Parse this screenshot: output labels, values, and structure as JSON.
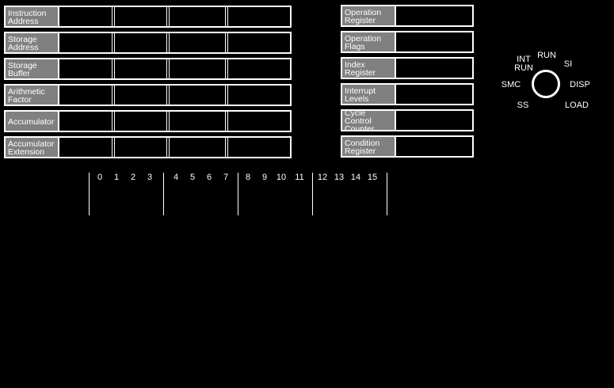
{
  "left_registers": [
    {
      "label": "Instruction\nAddress"
    },
    {
      "label": "Storage\nAddress"
    },
    {
      "label": "Storage\nBuffer"
    },
    {
      "label": "Arithmetic\nFactor"
    },
    {
      "label": "Accumulator"
    },
    {
      "label": "Accumulator\nExtension"
    }
  ],
  "right_registers": [
    {
      "label": "Operation\nRegister"
    },
    {
      "label": "Operation\nFlags"
    },
    {
      "label": "Index\nRegister"
    },
    {
      "label": "Interrupt\nLevels"
    },
    {
      "label": "Cycle Control\nCounter"
    },
    {
      "label": "Condition\nRegister"
    }
  ],
  "mode_switch": {
    "positions": [
      "RUN",
      "SI",
      "DISP",
      "LOAD",
      "SS",
      "SMC",
      "INT\nRUN"
    ]
  },
  "bit_labels": [
    "0",
    "1",
    "2",
    "3",
    "4",
    "5",
    "6",
    "7",
    "8",
    "9",
    "10",
    "11",
    "12",
    "13",
    "14",
    "15"
  ]
}
